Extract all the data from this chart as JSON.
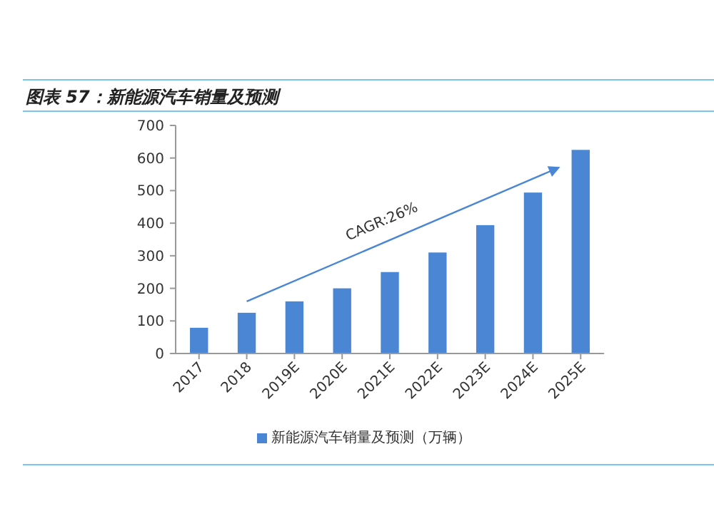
{
  "chart_data": {
    "type": "bar",
    "title": "图表 57：新能源汽车销量及预测",
    "categories": [
      "2017",
      "2018",
      "2019E",
      "2020E",
      "2021E",
      "2022E",
      "2023E",
      "2024E",
      "2025E"
    ],
    "series": [
      {
        "name": "新能源汽车销量及预测（万辆）",
        "color": "#4a86d4",
        "values": [
          79,
          125,
          160,
          200,
          250,
          310,
          394,
          494,
          625
        ]
      }
    ],
    "ylim": [
      0,
      700
    ],
    "yticks": [
      0,
      100,
      200,
      300,
      400,
      500,
      600,
      700
    ],
    "annotations": [
      "CAGR:26%"
    ],
    "legend": "bottom",
    "grid": false
  }
}
